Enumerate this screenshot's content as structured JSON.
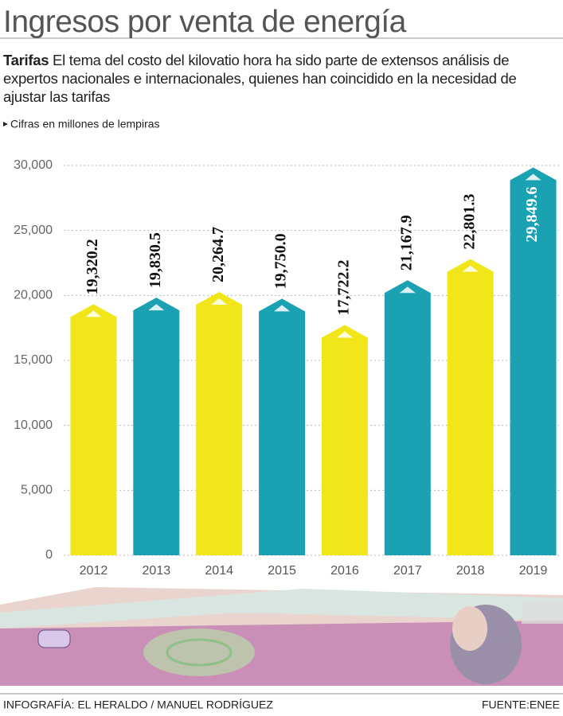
{
  "title": "Ingresos por venta de energía",
  "subtitle_label": "Tarifas",
  "subtitle": "El tema del costo del kilovatio hora ha sido parte de extensos análisis de expertos nacionales e internacionales, quienes han coincidido en la necesidad de ajustar las tarifas",
  "chart_data": {
    "type": "bar",
    "unit_note": "Cifras en millones de lempiras",
    "categories": [
      "2012",
      "2013",
      "2014",
      "2015",
      "2016",
      "2017",
      "2018",
      "2019"
    ],
    "values": [
      19320.2,
      19830.5,
      20264.7,
      19750.0,
      17722.2,
      21167.9,
      22801.3,
      29849.6
    ],
    "value_labels": [
      "19,320.2",
      "19,830.5",
      "20,264.7",
      "19,750.0",
      "17,722.2",
      "21,167.9",
      "22,801.3",
      "29,849.6"
    ],
    "colors": [
      "#f0e619",
      "#1aa2b2",
      "#f0e619",
      "#1aa2b2",
      "#f0e619",
      "#1aa2b2",
      "#f0e619",
      "#1aa2b2"
    ],
    "ylim": [
      0,
      30000
    ],
    "yticks": [
      0,
      {
        "value": 5000,
        "label": "5,000"
      },
      {
        "value": 10000,
        "label": "10,000"
      },
      {
        "value": 15000,
        "label": "15,000"
      },
      {
        "value": 20000,
        "label": "20,000"
      },
      {
        "value": 25000,
        "label": "25,000"
      },
      {
        "value": 30000,
        "label": "30,000"
      }
    ],
    "grid": true
  },
  "footer": {
    "credit": "INFOGRAFÍA: EL HERALDO / MANUEL RODRÍGUEZ",
    "source": "FUENTE:ENEE"
  }
}
